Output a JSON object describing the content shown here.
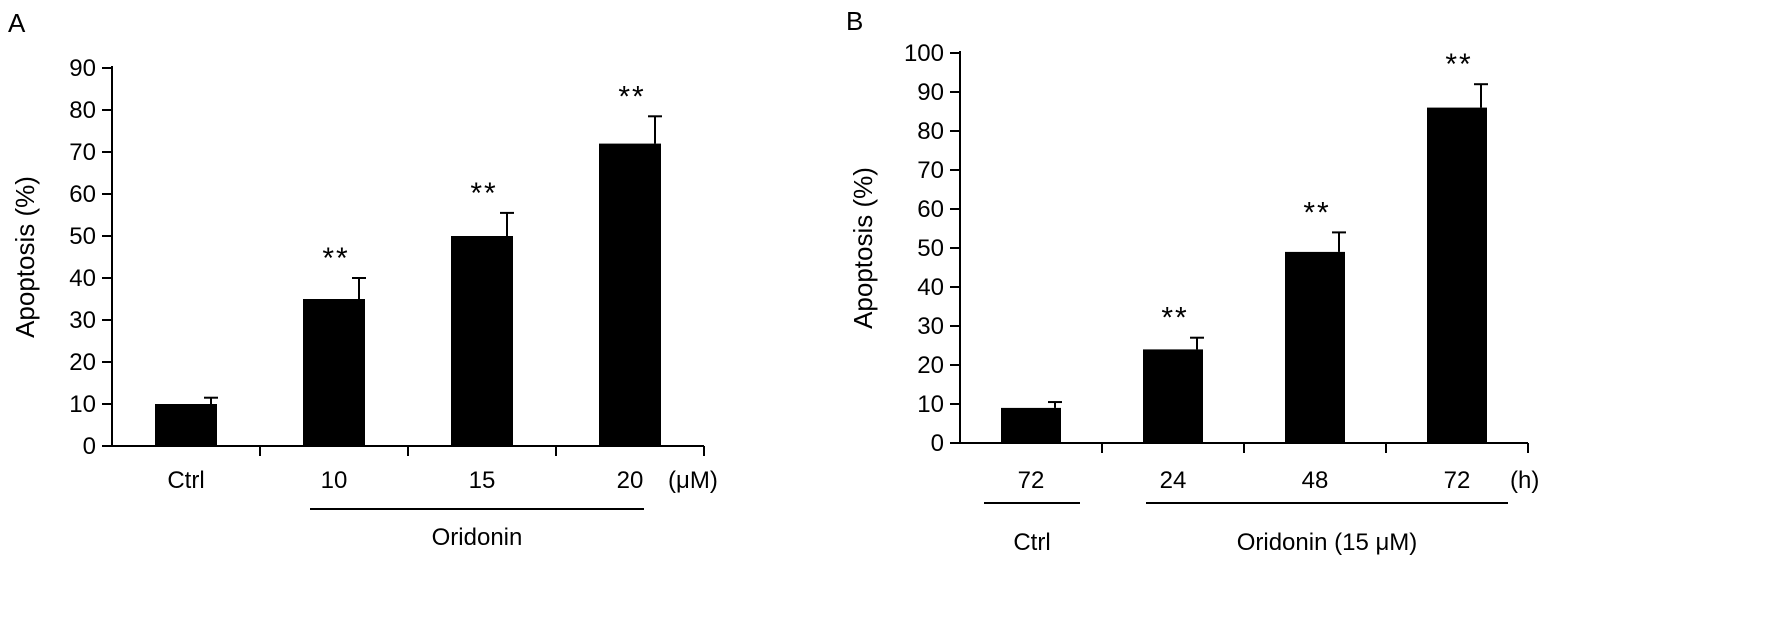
{
  "chart_data": [
    {
      "type": "bar",
      "panel": "A",
      "ylabel": "Apoptosis (%)",
      "ylim": [
        0,
        90
      ],
      "yticks": [
        0,
        10,
        20,
        30,
        40,
        50,
        60,
        70,
        80,
        90
      ],
      "categories": [
        "Ctrl",
        "10",
        "15",
        "20"
      ],
      "x_unit": "(μM)",
      "values": [
        10,
        35,
        50,
        72
      ],
      "errors": [
        1.5,
        5,
        5.5,
        6.5
      ],
      "significance": [
        "",
        "**",
        "**",
        "**"
      ],
      "groups": [
        {
          "label": "Oridonin",
          "from": 1,
          "to": 3
        }
      ],
      "bar_color": "#000000"
    },
    {
      "type": "bar",
      "panel": "B",
      "ylabel": "Apoptosis (%)",
      "ylim": [
        0,
        100
      ],
      "yticks": [
        0,
        10,
        20,
        30,
        40,
        50,
        60,
        70,
        80,
        90,
        100
      ],
      "categories": [
        "72",
        "24",
        "48",
        "72"
      ],
      "x_unit": "(h)",
      "values": [
        9,
        24,
        49,
        86
      ],
      "errors": [
        1.5,
        3,
        5,
        6
      ],
      "significance": [
        "",
        "**",
        "**",
        "**"
      ],
      "groups": [
        {
          "label": "Ctrl",
          "from": 0,
          "to": 0
        },
        {
          "label": "Oridonin (15 μM)",
          "from": 1,
          "to": 3
        }
      ],
      "bar_color": "#000000"
    }
  ]
}
